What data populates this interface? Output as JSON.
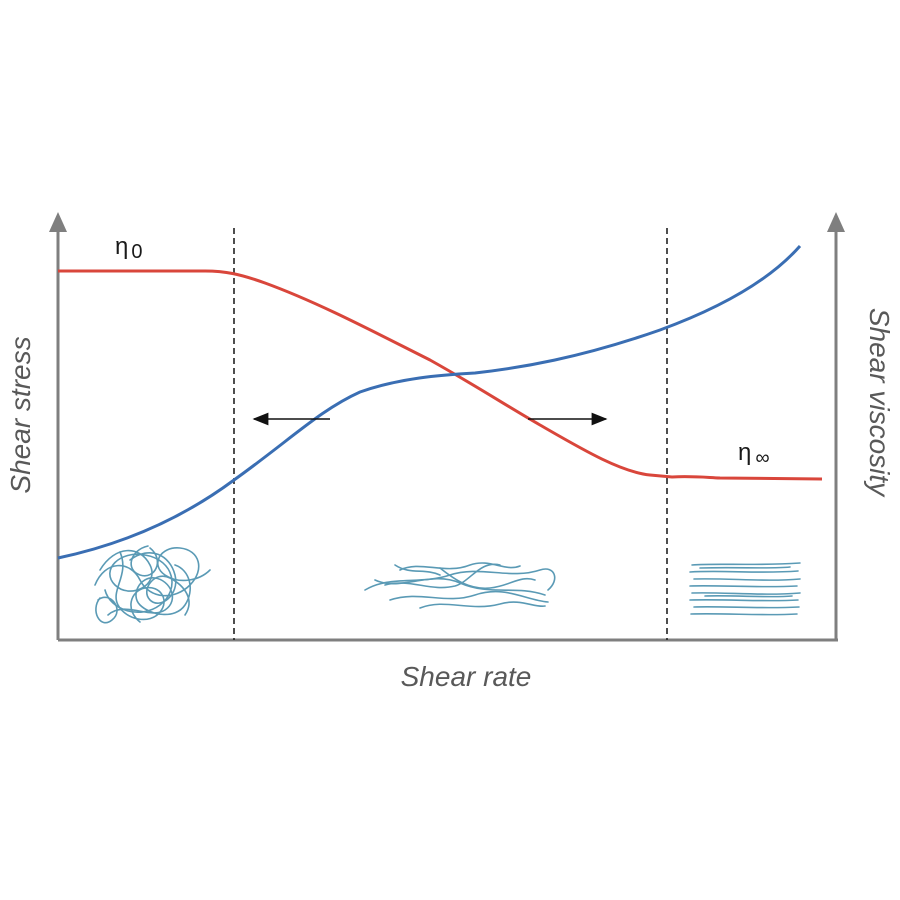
{
  "axes": {
    "x_label": "Shear rate",
    "y_left_label": "Shear stress",
    "y_right_label": "Shear viscosity"
  },
  "annotations": {
    "eta_zero": {
      "symbol": "η",
      "subscript": "0"
    },
    "eta_infinity": {
      "symbol": "η",
      "subscript": "∞"
    }
  },
  "colors": {
    "viscosity_curve": "#d9463b",
    "stress_curve": "#3a6eb3",
    "axis": "#7f7f7f",
    "polymer_chains": "#5a9ab5",
    "arrows": "#111111"
  },
  "curves": [
    {
      "name": "shear viscosity",
      "color_key": "viscosity_curve"
    },
    {
      "name": "shear stress",
      "color_key": "stress_curve"
    }
  ],
  "regions": [
    {
      "id": "newtonian-low",
      "chain_state": "entangled"
    },
    {
      "id": "shear-thinning",
      "chain_state": "partially-aligned"
    },
    {
      "id": "newtonian-high",
      "chain_state": "aligned"
    }
  ]
}
